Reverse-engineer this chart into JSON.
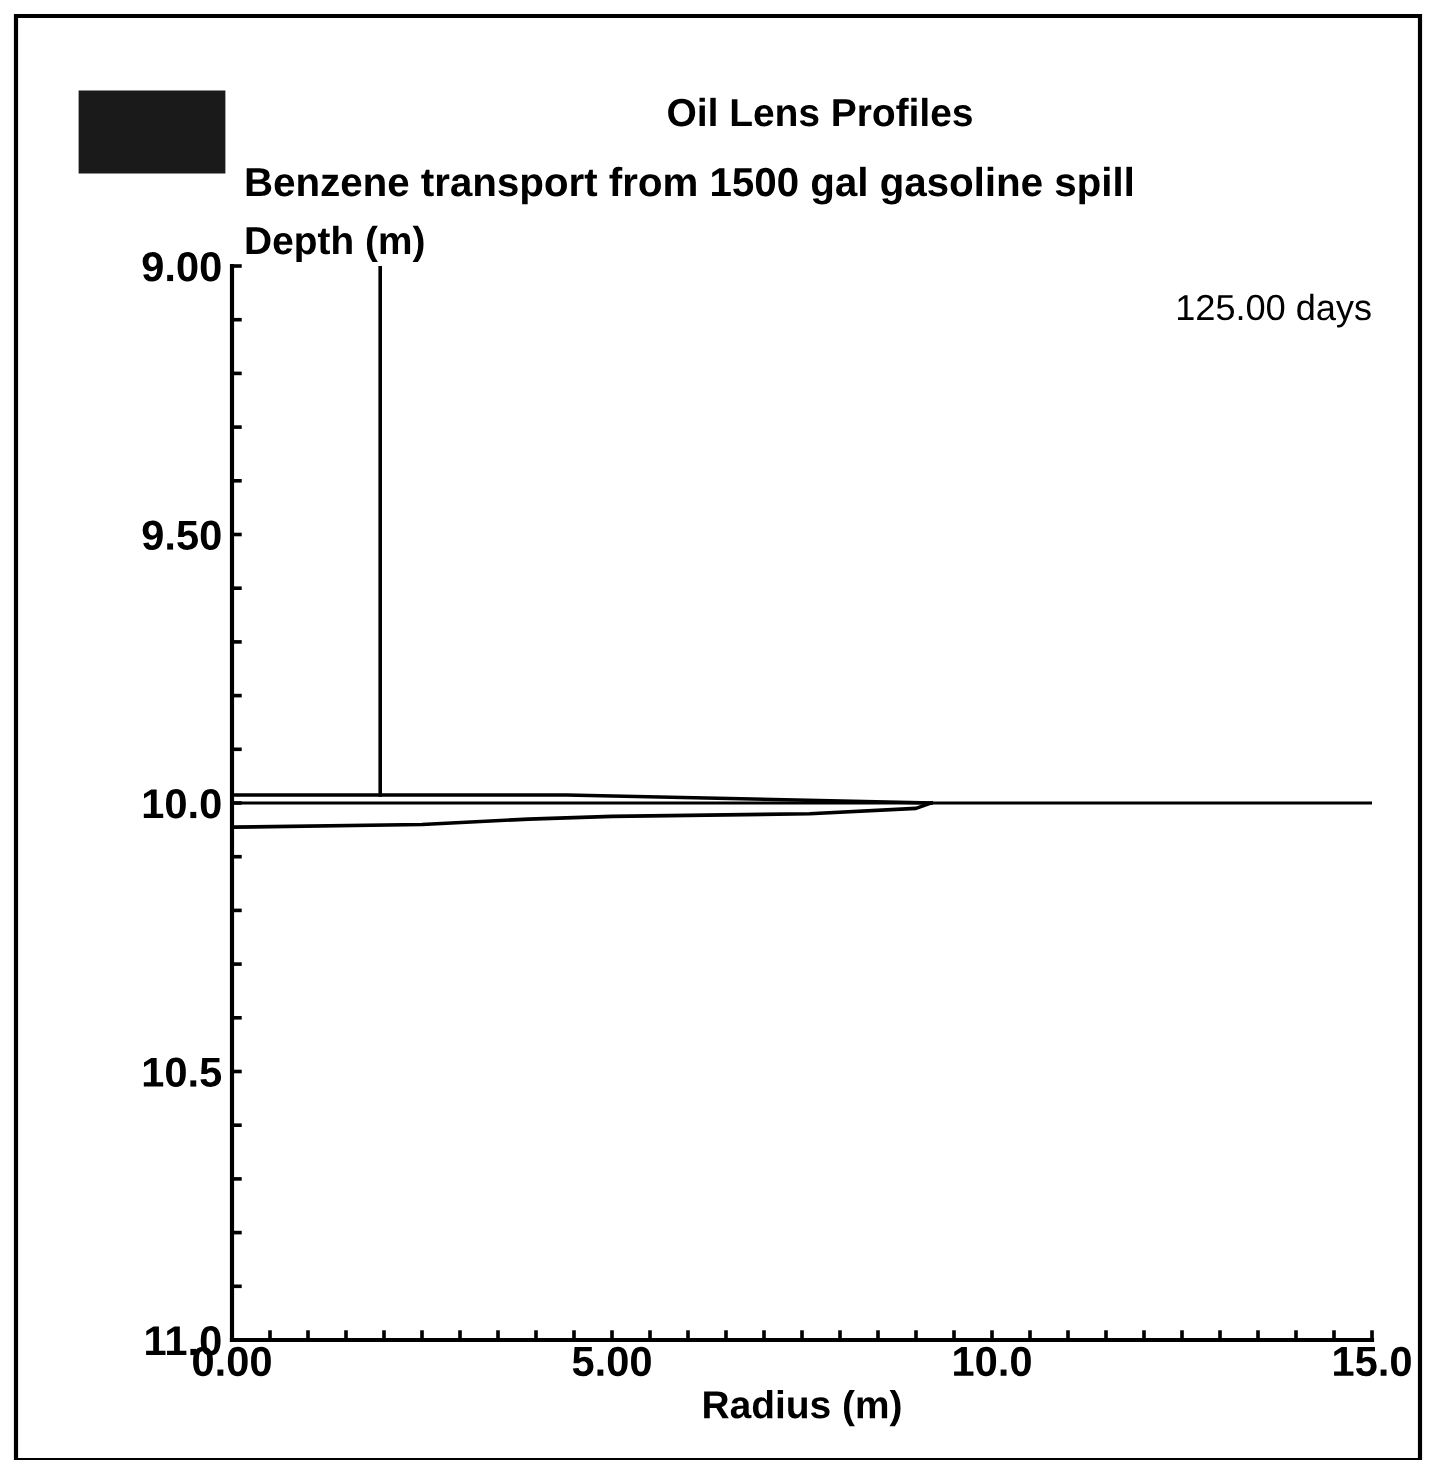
{
  "chart_data": {
    "type": "line",
    "title": "Oil Lens Profiles",
    "subtitle": "Benzene transport from 1500 gal gasoline spill",
    "xlabel": "Radius (m)",
    "ylabel": "Depth (m)",
    "annotations": [
      "125.00 days"
    ],
    "series": [
      {
        "color": "#000000",
        "x": [
          1.95,
          1.95
        ],
        "values": [
          9.0,
          9.985
        ]
      },
      {
        "color": "#000000",
        "x": [
          0,
          2.5,
          4.4,
          9.2
        ],
        "values": [
          9.985,
          9.985,
          9.985,
          10.0
        ]
      },
      {
        "color": "#000000",
        "x": [
          0,
          2.5,
          3.9,
          5.0,
          7.6,
          9.0,
          9.2
        ],
        "values": [
          10.045,
          10.04,
          10.03,
          10.025,
          10.02,
          10.01,
          10.0
        ]
      }
    ],
    "ref_lines": [
      {
        "axis": "y",
        "value": 10.0,
        "color": "#000000"
      }
    ],
    "xlim": [
      0,
      15
    ],
    "ylim": [
      11.0,
      9.0
    ],
    "xticks": [
      {
        "value": 0,
        "label": "0.00"
      },
      {
        "value": 0.5,
        "label": null
      },
      {
        "value": 1,
        "label": null
      },
      {
        "value": 1.5,
        "label": null
      },
      {
        "value": 2,
        "label": null
      },
      {
        "value": 2.5,
        "label": null
      },
      {
        "value": 3,
        "label": null
      },
      {
        "value": 3.5,
        "label": null
      },
      {
        "value": 4,
        "label": null
      },
      {
        "value": 4.5,
        "label": null
      },
      {
        "value": 5,
        "label": "5.00"
      },
      {
        "value": 5.5,
        "label": null
      },
      {
        "value": 6,
        "label": null
      },
      {
        "value": 6.5,
        "label": null
      },
      {
        "value": 7,
        "label": null
      },
      {
        "value": 7.5,
        "label": null
      },
      {
        "value": 8,
        "label": null
      },
      {
        "value": 8.5,
        "label": null
      },
      {
        "value": 9,
        "label": null
      },
      {
        "value": 9.5,
        "label": null
      },
      {
        "value": 10,
        "label": "10.0"
      },
      {
        "value": 10.5,
        "label": null
      },
      {
        "value": 11,
        "label": null
      },
      {
        "value": 11.5,
        "label": null
      },
      {
        "value": 12,
        "label": null
      },
      {
        "value": 12.5,
        "label": null
      },
      {
        "value": 13,
        "label": null
      },
      {
        "value": 13.5,
        "label": null
      },
      {
        "value": 14,
        "label": null
      },
      {
        "value": 14.5,
        "label": null
      },
      {
        "value": 15,
        "label": "15.0"
      }
    ],
    "yticks": [
      {
        "value": 9.0,
        "label": "9.00"
      },
      {
        "value": 9.1,
        "label": null
      },
      {
        "value": 9.2,
        "label": null
      },
      {
        "value": 9.3,
        "label": null
      },
      {
        "value": 9.4,
        "label": null
      },
      {
        "value": 9.5,
        "label": "9.50"
      },
      {
        "value": 9.6,
        "label": null
      },
      {
        "value": 9.7,
        "label": null
      },
      {
        "value": 9.8,
        "label": null
      },
      {
        "value": 9.9,
        "label": null
      },
      {
        "value": 10.0,
        "label": "10.0"
      },
      {
        "value": 10.1,
        "label": null
      },
      {
        "value": 10.2,
        "label": null
      },
      {
        "value": 10.3,
        "label": null
      },
      {
        "value": 10.4,
        "label": null
      },
      {
        "value": 10.5,
        "label": "10.5"
      },
      {
        "value": 10.6,
        "label": null
      },
      {
        "value": 10.7,
        "label": null
      },
      {
        "value": 10.8,
        "label": null
      },
      {
        "value": 10.9,
        "label": null
      },
      {
        "value": 11.0,
        "label": "11.0"
      }
    ],
    "grid": false,
    "legend": false,
    "marker": "none",
    "line_style": "solid"
  }
}
